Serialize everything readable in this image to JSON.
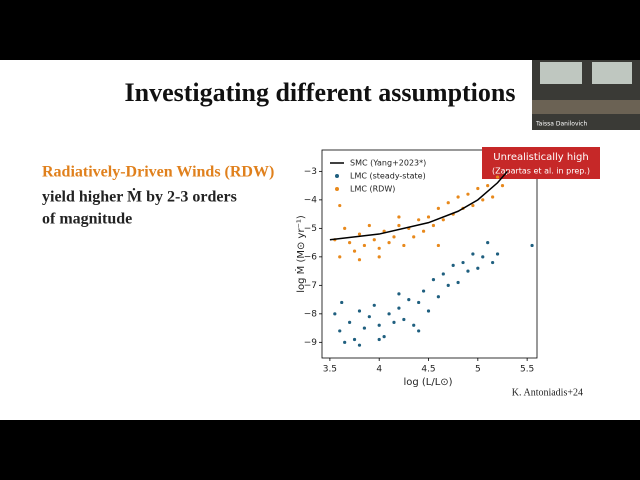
{
  "slide": {
    "title": "Investigating different assumptions",
    "lines": [
      "Radiatively-Driven Winds (RDW)",
      "yield higher Ṁ by 2-3 orders",
      "of magnitude"
    ],
    "credit": "K. Antoniadis+24"
  },
  "webcam": {
    "name": "Taissa Danilovich"
  },
  "chart_data": {
    "type": "scatter",
    "xlabel": "log (L/L⊙)",
    "ylabel": "log Ṁ (M⊙ yr⁻¹)",
    "xlim": [
      3.42,
      5.6
    ],
    "ylim": [
      -9.55,
      -2.25
    ],
    "xticks": [
      3.5,
      4.0,
      4.5,
      5.0,
      5.5
    ],
    "yticks": [
      {
        "value": -3,
        "label": "−3"
      },
      {
        "value": -4,
        "label": "−4"
      },
      {
        "value": -5,
        "label": "−5"
      },
      {
        "value": -6,
        "label": "−6"
      },
      {
        "value": -7,
        "label": "−7"
      },
      {
        "value": -8,
        "label": "−8"
      },
      {
        "value": -9,
        "label": "−9"
      }
    ],
    "legend": "upper left",
    "annotation": [
      "Unrealistically high",
      "(Zapartas et al. in prep.)"
    ],
    "series": [
      {
        "name": "SMC (Yang+2023*)",
        "type": "line",
        "color": "#000000",
        "x": [
          3.5,
          4.0,
          4.5,
          4.8,
          5.0,
          5.2,
          5.3
        ],
        "values": [
          -5.4,
          -5.2,
          -4.8,
          -4.4,
          -4.0,
          -3.4,
          -3.0
        ]
      },
      {
        "name": "LMC (steady-state)",
        "type": "scatter",
        "color": "#1f5f7f",
        "x": [
          3.55,
          3.6,
          3.62,
          3.7,
          3.75,
          3.8,
          3.85,
          3.9,
          3.95,
          4.0,
          4.05,
          4.1,
          4.15,
          4.2,
          4.25,
          4.3,
          4.35,
          4.4,
          4.45,
          4.5,
          4.55,
          4.6,
          4.65,
          4.7,
          4.75,
          4.8,
          4.85,
          4.9,
          4.95,
          5.0,
          5.05,
          5.1,
          5.15,
          5.2,
          5.55,
          3.65,
          3.8,
          4.0,
          4.2,
          4.4
        ],
        "values": [
          -8.0,
          -8.6,
          -7.6,
          -8.3,
          -8.9,
          -7.9,
          -8.5,
          -8.1,
          -7.7,
          -8.4,
          -8.8,
          -8.0,
          -8.3,
          -7.8,
          -8.2,
          -7.5,
          -8.4,
          -7.6,
          -7.2,
          -7.9,
          -6.8,
          -7.4,
          -6.6,
          -7.0,
          -6.3,
          -6.9,
          -6.2,
          -6.5,
          -5.9,
          -6.4,
          -6.0,
          -5.5,
          -6.2,
          -5.9,
          -5.6,
          -9.0,
          -9.1,
          -8.9,
          -7.3,
          -8.6
        ]
      },
      {
        "name": "LMC (RDW)",
        "type": "scatter",
        "color": "#e8891c",
        "x": [
          3.55,
          3.6,
          3.65,
          3.7,
          3.75,
          3.8,
          3.85,
          3.9,
          3.95,
          4.0,
          4.05,
          4.1,
          4.15,
          4.2,
          4.25,
          4.3,
          4.35,
          4.4,
          4.45,
          4.5,
          4.55,
          4.6,
          4.65,
          4.7,
          4.75,
          4.8,
          4.85,
          4.9,
          4.95,
          5.0,
          5.05,
          5.1,
          5.15,
          5.2,
          5.25,
          3.6,
          3.8,
          4.0,
          4.2,
          4.6
        ],
        "values": [
          -5.4,
          -6.0,
          -5.0,
          -5.5,
          -5.8,
          -5.2,
          -5.6,
          -4.9,
          -5.4,
          -5.7,
          -5.1,
          -5.5,
          -5.3,
          -4.9,
          -5.6,
          -5.0,
          -5.3,
          -4.7,
          -5.1,
          -4.6,
          -4.9,
          -4.3,
          -4.7,
          -4.1,
          -4.5,
          -3.9,
          -4.3,
          -3.8,
          -4.2,
          -3.6,
          -4.0,
          -3.5,
          -3.9,
          -3.2,
          -3.5,
          -4.2,
          -6.1,
          -6.0,
          -4.6,
          -5.6
        ]
      }
    ]
  }
}
